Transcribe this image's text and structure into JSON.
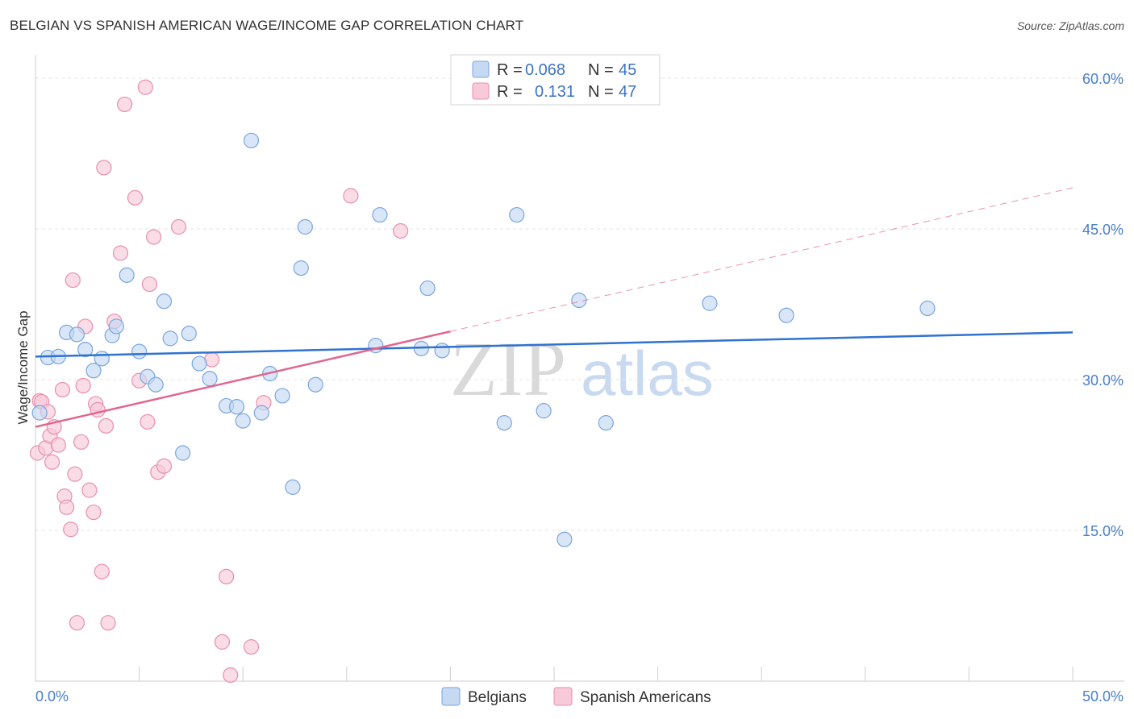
{
  "title": "BELGIAN VS SPANISH AMERICAN WAGE/INCOME GAP CORRELATION CHART",
  "source": "Source: ZipAtlas.com",
  "watermark": {
    "zip": "ZIP",
    "atlas": "atlas"
  },
  "colors": {
    "blue_fill": "#c5d9f3",
    "blue_stroke": "#7aa6de",
    "blue_line": "#2f72d0",
    "pink_fill": "#f8c9d8",
    "pink_stroke": "#e88fae",
    "pink_line": "#e0658f",
    "grid": "#e3e3e3",
    "tick_text": "#4a7fc8"
  },
  "legend": {
    "rows": [
      {
        "series": "blue",
        "r_label": "R =",
        "r_value": "0.068",
        "n_label": "N =",
        "n_value": "45"
      },
      {
        "series": "pink",
        "r_label": "R =",
        "r_value": "0.131",
        "n_label": "N =",
        "n_value": "47"
      }
    ]
  },
  "chart_data": {
    "type": "scatter",
    "title": "BELGIAN VS SPANISH AMERICAN WAGE/INCOME GAP CORRELATION CHART",
    "xlabel": "",
    "ylabel": "Wage/Income Gap",
    "xlim": [
      0,
      50
    ],
    "ylim": [
      0,
      62
    ],
    "x_tick_labels": [
      {
        "value": 0,
        "label": "0.0%"
      },
      {
        "value": 50,
        "label": "50.0%"
      }
    ],
    "y_tick_labels": [
      {
        "value": 15,
        "label": "15.0%"
      },
      {
        "value": 30,
        "label": "30.0%"
      },
      {
        "value": 45,
        "label": "45.0%"
      },
      {
        "value": 60,
        "label": "60.0%"
      }
    ],
    "series": [
      {
        "name": "Belgians",
        "color": "blue",
        "points": [
          [
            0.2,
            26.7
          ],
          [
            0.6,
            32.2
          ],
          [
            1.1,
            32.3
          ],
          [
            1.5,
            34.7
          ],
          [
            2.0,
            34.5
          ],
          [
            2.4,
            33.0
          ],
          [
            2.8,
            30.9
          ],
          [
            3.2,
            32.1
          ],
          [
            3.7,
            34.4
          ],
          [
            3.9,
            35.3
          ],
          [
            4.4,
            40.4
          ],
          [
            5.0,
            32.8
          ],
          [
            5.4,
            30.3
          ],
          [
            5.8,
            29.5
          ],
          [
            6.2,
            37.8
          ],
          [
            6.5,
            34.1
          ],
          [
            7.1,
            22.7
          ],
          [
            7.4,
            34.6
          ],
          [
            7.9,
            31.6
          ],
          [
            8.4,
            30.1
          ],
          [
            9.2,
            27.4
          ],
          [
            9.7,
            27.3
          ],
          [
            10.0,
            25.9
          ],
          [
            10.4,
            53.8
          ],
          [
            10.9,
            26.7
          ],
          [
            11.3,
            30.6
          ],
          [
            11.9,
            28.4
          ],
          [
            12.4,
            19.3
          ],
          [
            12.8,
            41.1
          ],
          [
            13.0,
            45.2
          ],
          [
            13.5,
            29.5
          ],
          [
            16.4,
            33.4
          ],
          [
            16.6,
            46.4
          ],
          [
            18.6,
            33.1
          ],
          [
            18.9,
            39.1
          ],
          [
            19.6,
            32.9
          ],
          [
            22.6,
            25.7
          ],
          [
            23.2,
            46.4
          ],
          [
            24.5,
            26.9
          ],
          [
            25.5,
            14.1
          ],
          [
            26.2,
            37.9
          ],
          [
            27.5,
            25.7
          ],
          [
            32.5,
            37.6
          ],
          [
            36.2,
            36.4
          ],
          [
            43.0,
            37.1
          ]
        ]
      },
      {
        "name": "Spanish Americans",
        "color": "pink",
        "points": [
          [
            0.1,
            22.7
          ],
          [
            0.2,
            27.9
          ],
          [
            0.3,
            27.8
          ],
          [
            0.5,
            23.2
          ],
          [
            0.6,
            26.8
          ],
          [
            0.7,
            24.4
          ],
          [
            0.8,
            21.8
          ],
          [
            0.9,
            25.3
          ],
          [
            1.1,
            23.5
          ],
          [
            1.3,
            29.0
          ],
          [
            1.4,
            18.4
          ],
          [
            1.5,
            17.3
          ],
          [
            1.7,
            15.1
          ],
          [
            1.8,
            39.9
          ],
          [
            1.9,
            20.6
          ],
          [
            2.0,
            5.8
          ],
          [
            2.2,
            23.8
          ],
          [
            2.3,
            29.4
          ],
          [
            2.4,
            35.3
          ],
          [
            2.6,
            19.0
          ],
          [
            2.8,
            16.8
          ],
          [
            2.9,
            27.6
          ],
          [
            3.0,
            27.0
          ],
          [
            3.2,
            10.9
          ],
          [
            3.3,
            51.1
          ],
          [
            3.4,
            25.4
          ],
          [
            3.5,
            5.8
          ],
          [
            3.8,
            35.8
          ],
          [
            4.1,
            42.6
          ],
          [
            4.3,
            57.4
          ],
          [
            4.8,
            48.1
          ],
          [
            5.0,
            29.9
          ],
          [
            5.3,
            59.1
          ],
          [
            5.4,
            25.8
          ],
          [
            5.5,
            39.5
          ],
          [
            5.7,
            44.2
          ],
          [
            5.9,
            20.8
          ],
          [
            6.2,
            21.4
          ],
          [
            6.9,
            45.2
          ],
          [
            8.5,
            32.0
          ],
          [
            9.0,
            3.9
          ],
          [
            9.2,
            10.4
          ],
          [
            9.4,
            0.6
          ],
          [
            10.4,
            3.4
          ],
          [
            11.0,
            27.7
          ],
          [
            15.2,
            48.3
          ],
          [
            17.6,
            44.8
          ]
        ]
      }
    ],
    "trendlines": [
      {
        "series": "Belgians",
        "x": [
          0,
          50
        ],
        "y": [
          32.3,
          34.7
        ],
        "style": "solid"
      },
      {
        "series": "Spanish Americans",
        "x": [
          0,
          20
        ],
        "y": [
          25.3,
          34.8
        ],
        "style": "solid"
      },
      {
        "series": "Spanish Americans",
        "x": [
          20,
          50
        ],
        "y": [
          34.8,
          49.1
        ],
        "style": "dashed"
      }
    ]
  }
}
